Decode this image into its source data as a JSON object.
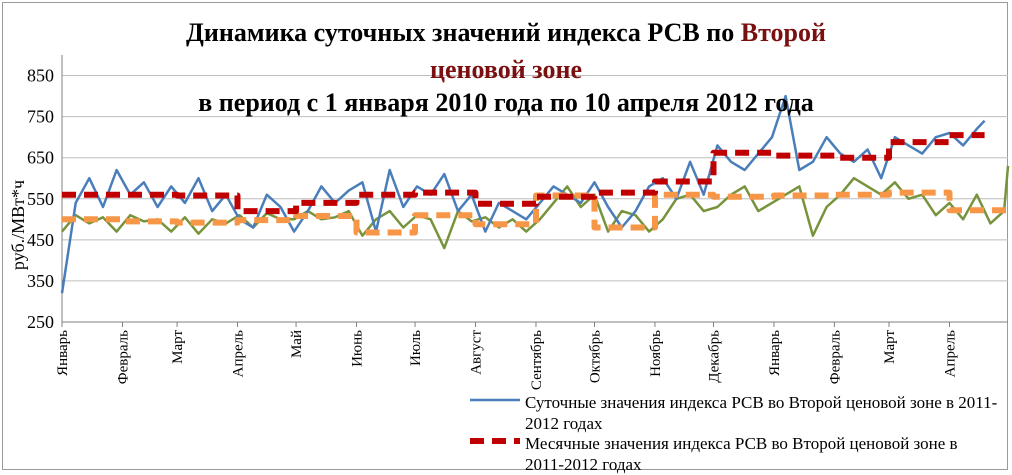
{
  "title": {
    "line1_main": "Динамика суточных значений индекса РСВ по ",
    "line1_accent": "Второй",
    "line2": "ценовой зоне",
    "line3": "в период с 1 января 2010 года по 10 апреля 2012 года"
  },
  "colors": {
    "daily_2011_2012": "#4a7ebb",
    "daily_2010": "#77933c",
    "monthly_2011_2012": "#c00000",
    "monthly_2010": "#f79646"
  },
  "chart_data": {
    "type": "line",
    "title": "Динамика суточных значений индекса РСВ по Второй ценовой зоне в период с 1 января 2010 года по 10 апреля 2012 года",
    "ylabel": "руб./МВт*ч",
    "ylim": [
      250,
      900
    ],
    "yticks": [
      250,
      350,
      450,
      550,
      650,
      750,
      850
    ],
    "grid": true,
    "legend_position": "bottom-right",
    "x_axis": "day of year (1–366)",
    "categories": [
      "Январь",
      "Февраль",
      "Март",
      "Апрель",
      "Май",
      "Июнь",
      "Июль",
      "Август",
      "Сентябрь",
      "Октябрь",
      "Ноябрь",
      "Декабрь",
      "Январь",
      "Февраль",
      "Март",
      "Апрель"
    ],
    "category_start_day": [
      1,
      32,
      60,
      91,
      121,
      152,
      182,
      213,
      244,
      274,
      305,
      335,
      366,
      397,
      425,
      456
    ],
    "x_max_day": 486,
    "series": [
      {
        "name": "",
        "style": "daily-green",
        "x": [
          1,
          8,
          15,
          22,
          29,
          36,
          43,
          50,
          57,
          64,
          71,
          78,
          85,
          92,
          99,
          106,
          113,
          120,
          127,
          134,
          141,
          148,
          155,
          162,
          169,
          176,
          183,
          190,
          197,
          204,
          211,
          218,
          225,
          232,
          239,
          246,
          253,
          260,
          267,
          274,
          281,
          288,
          295,
          302,
          309,
          316,
          323,
          330,
          337,
          344,
          351,
          358,
          365,
          372,
          379,
          386,
          393,
          400,
          407,
          414,
          421,
          428,
          435,
          442,
          449,
          456,
          463,
          470,
          477,
          484,
          486
        ],
        "values": [
          470,
          510,
          490,
          505,
          470,
          510,
          495,
          500,
          470,
          505,
          465,
          500,
          490,
          510,
          480,
          515,
          500,
          500,
          520,
          500,
          505,
          520,
          460,
          500,
          520,
          480,
          510,
          500,
          430,
          520,
          495,
          505,
          480,
          500,
          470,
          500,
          540,
          580,
          530,
          560,
          470,
          520,
          510,
          470,
          500,
          550,
          560,
          520,
          530,
          560,
          580,
          520,
          540,
          560,
          580,
          460,
          530,
          560,
          600,
          580,
          560,
          590,
          550,
          560,
          510,
          540,
          500,
          560,
          490,
          520,
          630
        ]
      },
      {
        "name": "Суточные значения индекса РСВ во Второй ценовой зоне в 2011-2012 годах",
        "style": "daily-blue",
        "x": [
          1,
          8,
          15,
          22,
          29,
          36,
          43,
          50,
          57,
          64,
          71,
          78,
          85,
          92,
          99,
          106,
          113,
          120,
          127,
          134,
          141,
          148,
          155,
          162,
          169,
          176,
          183,
          190,
          197,
          204,
          211,
          218,
          225,
          232,
          239,
          246,
          253,
          260,
          267,
          274,
          281,
          288,
          295,
          302,
          309,
          316,
          323,
          330,
          337,
          344,
          351,
          358,
          365,
          372,
          379,
          386,
          393,
          400,
          407,
          414,
          421,
          428,
          435,
          442,
          449,
          456,
          463,
          470,
          474
        ],
        "values": [
          320,
          540,
          600,
          530,
          620,
          560,
          590,
          530,
          580,
          540,
          600,
          520,
          560,
          500,
          480,
          560,
          530,
          470,
          520,
          580,
          540,
          570,
          590,
          470,
          620,
          530,
          580,
          560,
          610,
          520,
          560,
          470,
          540,
          520,
          500,
          540,
          580,
          560,
          540,
          590,
          530,
          480,
          520,
          580,
          600,
          550,
          640,
          560,
          680,
          640,
          620,
          660,
          700,
          800,
          620,
          640,
          700,
          660,
          640,
          670,
          600,
          700,
          680,
          660,
          700,
          710,
          680,
          720,
          740
        ]
      },
      {
        "name": "",
        "style": "monthly-orange",
        "x": [
          1,
          32,
          32,
          60,
          60,
          91,
          91,
          121,
          121,
          152,
          152,
          182,
          182,
          213,
          213,
          244,
          244,
          274,
          274,
          305,
          305,
          335,
          335,
          366,
          366,
          397,
          397,
          425,
          425,
          456,
          456,
          486
        ],
        "values": [
          500,
          500,
          495,
          495,
          492,
          492,
          498,
          498,
          508,
          508,
          468,
          468,
          510,
          510,
          488,
          488,
          558,
          558,
          480,
          480,
          560,
          560,
          555,
          555,
          558,
          558,
          560,
          560,
          565,
          565,
          522,
          522
        ]
      },
      {
        "name": "Месячные значения индекса РСВ во Второй ценовой зоне в 2011-2012 годах",
        "style": "monthly-red",
        "x": [
          1,
          32,
          32,
          60,
          60,
          91,
          91,
          121,
          121,
          152,
          152,
          182,
          182,
          213,
          213,
          244,
          244,
          274,
          274,
          305,
          305,
          335,
          335,
          366,
          366,
          397,
          397,
          425,
          425,
          456,
          456,
          474
        ],
        "values": [
          560,
          560,
          560,
          560,
          558,
          558,
          520,
          520,
          540,
          540,
          560,
          560,
          565,
          565,
          538,
          538,
          555,
          555,
          565,
          565,
          592,
          592,
          662,
          662,
          655,
          655,
          650,
          650,
          688,
          688,
          705,
          705
        ]
      }
    ]
  }
}
